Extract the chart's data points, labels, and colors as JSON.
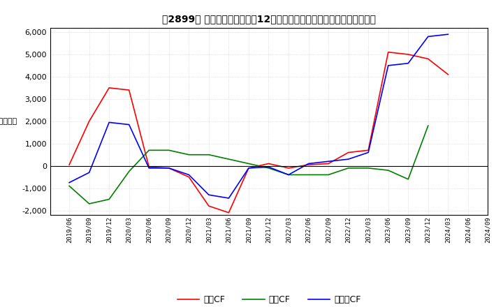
{
  "title": "　2899、 キャッシュフローの12か月移動合計の対前年同期増減額の推移",
  "ylim": [
    -2200,
    6200
  ],
  "yticks": [
    -2000,
    -1000,
    0,
    1000,
    2000,
    3000,
    4000,
    5000,
    6000
  ],
  "x_labels": [
    "2019/06",
    "2019/09",
    "2019/12",
    "2020/03",
    "2020/06",
    "2020/09",
    "2020/12",
    "2021/03",
    "2021/06",
    "2021/09",
    "2021/12",
    "2022/03",
    "2022/06",
    "2022/09",
    "2022/12",
    "2023/03",
    "2023/06",
    "2023/09",
    "2023/12",
    "2024/03",
    "2024/06",
    "2024/09"
  ],
  "operating_cf": [
    50,
    2000,
    3500,
    3400,
    -50,
    -100,
    -500,
    -1800,
    -2100,
    -100,
    100,
    -100,
    50,
    100,
    600,
    700,
    5100,
    5000,
    4800,
    4100,
    null,
    null
  ],
  "investing_cf": [
    -900,
    -1700,
    -1500,
    -250,
    700,
    700,
    500,
    500,
    300,
    100,
    -100,
    -400,
    -400,
    -400,
    -100,
    -100,
    -200,
    -600,
    1800,
    null,
    null,
    null
  ],
  "free_cf": [
    -750,
    -300,
    1950,
    1850,
    -100,
    -100,
    -400,
    -1300,
    -1450,
    -100,
    -50,
    -400,
    100,
    200,
    300,
    600,
    4500,
    4600,
    5800,
    5900,
    null,
    null
  ],
  "operating_color": "#ff0000",
  "investing_color": "#008000",
  "free_cf_color": "#0000ff",
  "bg_color": "#ffffff",
  "grid_color": "#c8c8c8",
  "legend_labels": [
    "営業CF",
    "投資CF",
    "フリーCF"
  ]
}
